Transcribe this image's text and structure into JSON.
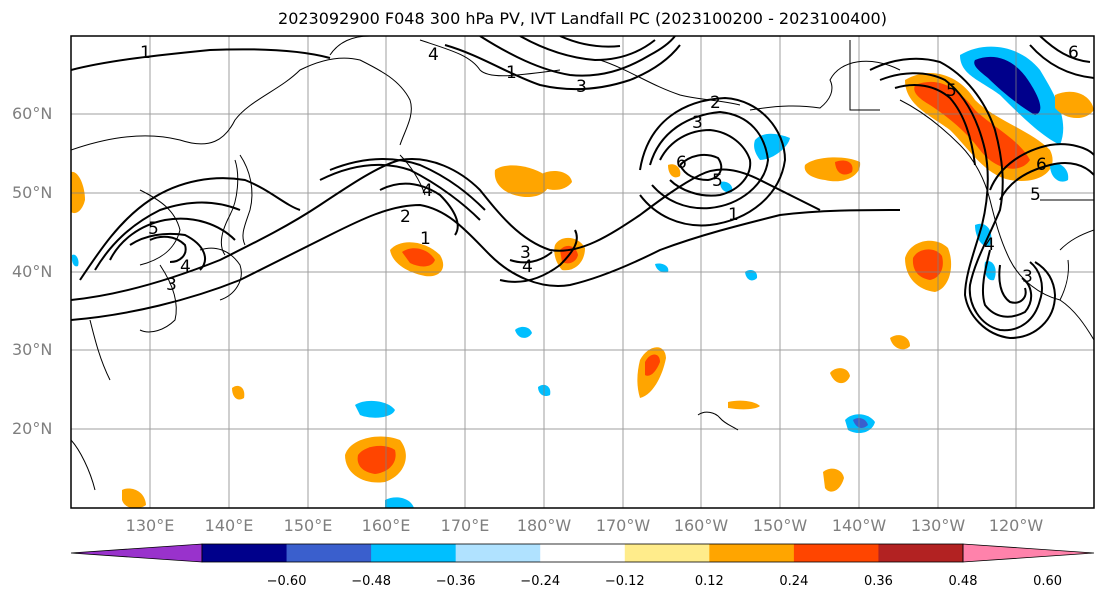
{
  "title": "2023092900 F048 300 hPa PV, IVT Landfall PC (2023100200 - 2023100400)",
  "lat_labels": [
    "60°N",
    "50°N",
    "40°N",
    "30°N",
    "20°N"
  ],
  "lon_labels": [
    "130°E",
    "140°E",
    "150°E",
    "160°E",
    "170°E",
    "180°W",
    "170°W",
    "160°W",
    "150°W",
    "140°W",
    "130°W",
    "120°W"
  ],
  "colorbar": {
    "levels": [
      "-0.60",
      "-0.48",
      "-0.36",
      "-0.24",
      "-0.12",
      "0.12",
      "0.24",
      "0.36",
      "0.48",
      "0.60"
    ],
    "colors": [
      "#9932cc",
      "#00008b",
      "#3a5fcd",
      "#00bfff",
      "#b0e2ff",
      "#ffffff",
      "#ffec8b",
      "#ffa500",
      "#ff4500",
      "#b22222",
      "#ff82ab"
    ]
  },
  "contour_labels": [
    "1",
    "2",
    "3",
    "4",
    "5",
    "6"
  ],
  "colors": {
    "coast": "#000000",
    "grid": "#7f7f7f",
    "label": "#7f7f7f"
  }
}
